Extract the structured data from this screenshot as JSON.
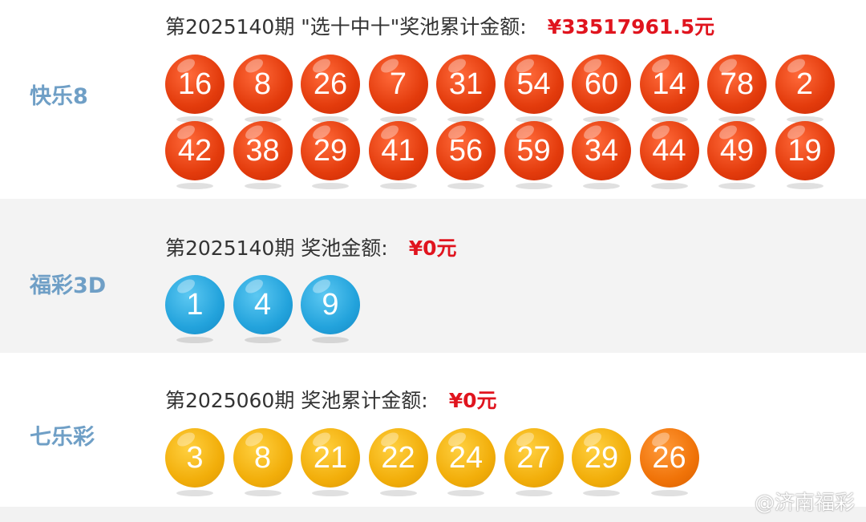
{
  "colors": {
    "label": "#6f9fc6",
    "amount": "#e0141e",
    "red_ball": "#e33b0c",
    "blue_ball": "#23a3dc",
    "yellow_ball": "#f2ae0a",
    "orange_ball": "#f07308"
  },
  "kl8": {
    "name": "快乐8",
    "header": "第2025140期 \"选十中十\"奖池累计金额:",
    "amount": "¥33517961.5元",
    "row1": [
      "16",
      "8",
      "26",
      "7",
      "31",
      "54",
      "60",
      "14",
      "78",
      "2"
    ],
    "row2": [
      "42",
      "38",
      "29",
      "41",
      "56",
      "59",
      "34",
      "44",
      "49",
      "19"
    ]
  },
  "fc3d": {
    "name": "福彩3D",
    "header": "第2025140期 奖池金额:",
    "amount": "¥0元",
    "balls": [
      "1",
      "4",
      "9"
    ]
  },
  "qlc": {
    "name": "七乐彩",
    "header": "第2025060期 奖池累计金额:",
    "amount": "¥0元",
    "balls": [
      "3",
      "8",
      "21",
      "22",
      "24",
      "27",
      "29"
    ],
    "special": "26"
  },
  "watermark": "@济南福彩"
}
